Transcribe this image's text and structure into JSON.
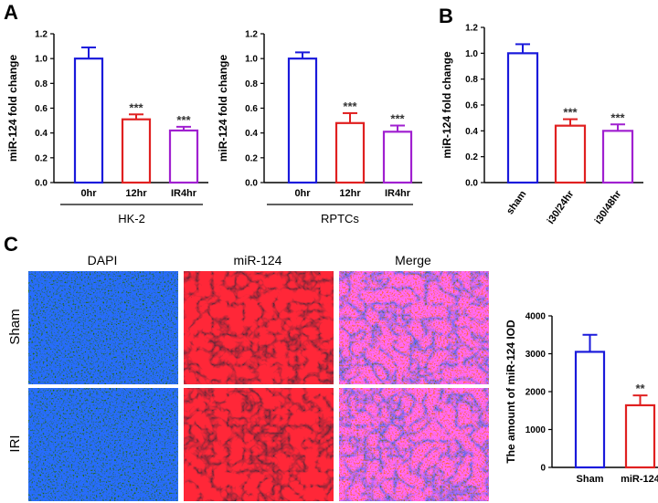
{
  "panels": {
    "a": "A",
    "b": "B",
    "c": "C"
  },
  "colors": {
    "blue": "#1a1adb",
    "red": "#e02020",
    "purple": "#a020d0",
    "axis": "#000000"
  },
  "chart_data": [
    {
      "id": "A-HK2",
      "type": "bar",
      "ylabel": "miR-124 fold change",
      "ylim": [
        0,
        1.2
      ],
      "yticks": [
        "0.0",
        "0.2",
        "0.4",
        "0.6",
        "0.8",
        "1.0",
        "1.2"
      ],
      "categories": [
        "0hr",
        "12hr",
        "IR4hr"
      ],
      "values": [
        1.0,
        0.51,
        0.42
      ],
      "errors": [
        0.09,
        0.04,
        0.03
      ],
      "significance": [
        "",
        "***",
        "***"
      ],
      "group_label": "HK-2"
    },
    {
      "id": "A-RPTC",
      "type": "bar",
      "ylabel": "miR-124 fold change",
      "ylim": [
        0,
        1.2
      ],
      "yticks": [
        "0.0",
        "0.2",
        "0.4",
        "0.6",
        "0.8",
        "1.0",
        "1.2"
      ],
      "categories": [
        "0hr",
        "12hr",
        "IR4hr"
      ],
      "values": [
        1.0,
        0.48,
        0.41
      ],
      "errors": [
        0.05,
        0.08,
        0.05
      ],
      "significance": [
        "",
        "***",
        "***"
      ],
      "group_label": "RPTCs"
    },
    {
      "id": "B",
      "type": "bar",
      "ylabel": "miR-124 fold change",
      "ylim": [
        0,
        1.2
      ],
      "yticks": [
        "0.0",
        "0.2",
        "0.4",
        "0.6",
        "0.8",
        "1.0",
        "1.2"
      ],
      "categories": [
        "sham",
        "i30/24hr",
        "i30/48hr"
      ],
      "values": [
        1.0,
        0.44,
        0.4
      ],
      "errors": [
        0.07,
        0.05,
        0.05
      ],
      "significance": [
        "",
        "***",
        "***"
      ]
    },
    {
      "id": "C-IOD",
      "type": "bar",
      "ylabel": "The amount of miR-124 IOD",
      "ylim": [
        0,
        4000
      ],
      "yticks": [
        "0",
        "1000",
        "2000",
        "3000",
        "4000"
      ],
      "categories": [
        "Sham",
        "miR-124"
      ],
      "values": [
        3050,
        1640
      ],
      "errors": [
        450,
        260
      ],
      "significance": [
        "",
        "**"
      ]
    }
  ],
  "micrographs": {
    "columns": [
      "DAPI",
      "miR-124",
      "Merge"
    ],
    "rows": [
      "Sham",
      "IRI"
    ]
  }
}
